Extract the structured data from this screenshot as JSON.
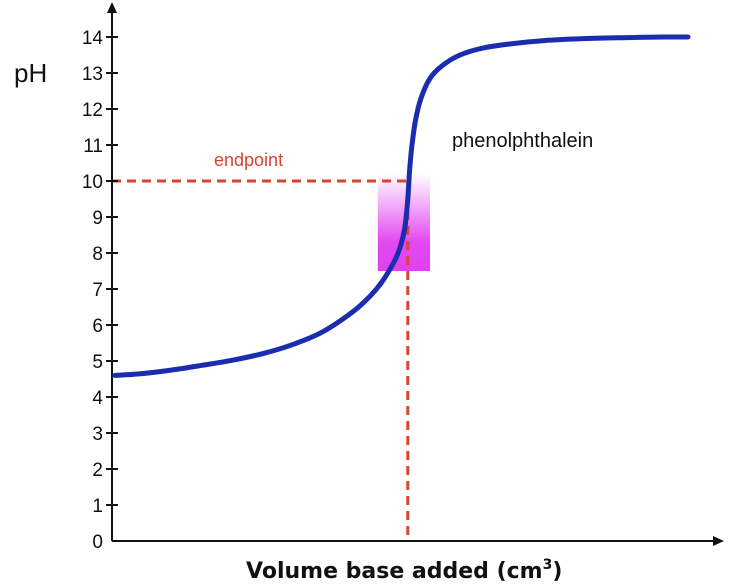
{
  "chart_data": {
    "type": "line",
    "title": "",
    "xlabel": "Volume base added (cm",
    "xlabel_superscript": "3",
    "xlabel_close": ")",
    "ylabel": "pH",
    "ylim": [
      0,
      14
    ],
    "xlim": [
      0,
      100
    ],
    "yticks": [
      "0",
      "1",
      "2",
      "3",
      "4",
      "5",
      "6",
      "7",
      "8",
      "9",
      "10",
      "11",
      "12",
      "13",
      "14"
    ],
    "grid": false,
    "series": [
      {
        "name": "titration curve",
        "color": "#1a2db0",
        "x": [
          0.5,
          5,
          10,
          15,
          20,
          25,
          30,
          35,
          40,
          43,
          45,
          47,
          48,
          48.8,
          49.3,
          49.6,
          50,
          50.6,
          51.5,
          53,
          55,
          58,
          62,
          67,
          72,
          78,
          85,
          92,
          96
        ],
        "y": [
          4.6,
          4.65,
          4.75,
          4.88,
          5.02,
          5.2,
          5.45,
          5.8,
          6.35,
          6.8,
          7.2,
          7.75,
          8.15,
          8.7,
          9.5,
          10.3,
          11.0,
          11.7,
          12.3,
          12.85,
          13.2,
          13.5,
          13.7,
          13.82,
          13.9,
          13.95,
          13.98,
          14.0,
          14.0
        ]
      }
    ],
    "annotations": {
      "endpoint_label": "endpoint",
      "endpoint_ph": 10,
      "endpoint_volume": 49.3,
      "endpoint_color": "#d6452f",
      "indicator_label": "phenolphthalein",
      "indicator_range": [
        7.5,
        10.2
      ],
      "indicator_volume_range": [
        44.3,
        53
      ],
      "indicator_color": "#e040f0"
    }
  }
}
